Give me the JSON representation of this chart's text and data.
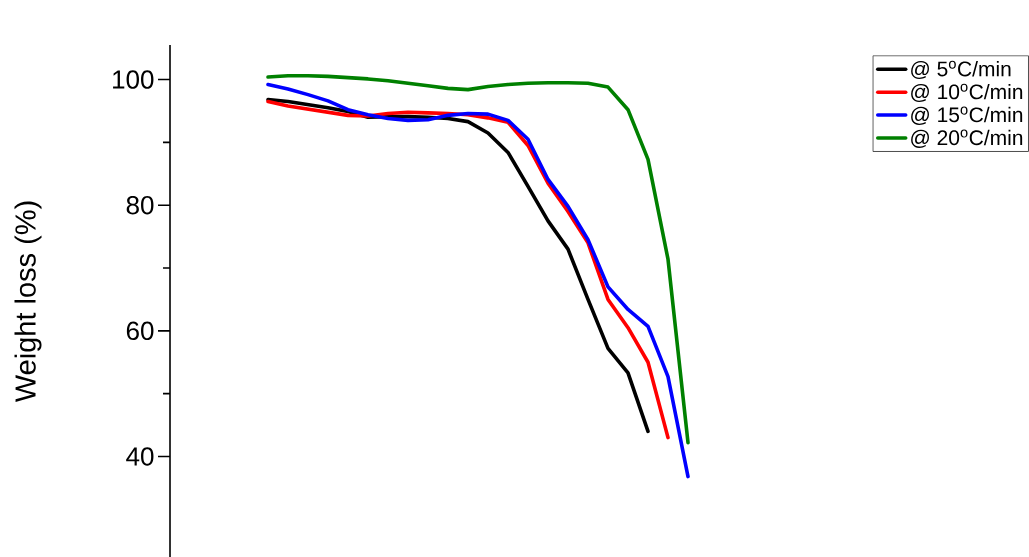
{
  "chart_data": {
    "type": "line",
    "ylabel": "Weight loss (%)",
    "categories": [
      null,
      null,
      null,
      null,
      null,
      null,
      null,
      null,
      null,
      null,
      null,
      null,
      null,
      null,
      null,
      null,
      null,
      null,
      null,
      null,
      null,
      null,
      null
    ],
    "series": [
      {
        "name": "@ 5$^{o}$C/min",
        "color": "#000000",
        "values": [
          96.8,
          96.5,
          96.0,
          95.5,
          94.9,
          94.0,
          94.1,
          94.1,
          94.0,
          93.8,
          93.3,
          91.5,
          88.4,
          83.0,
          77.5,
          73.0,
          65.0,
          57.2,
          53.3,
          44.0,
          null,
          null,
          null
        ]
      },
      {
        "name": "@ 10$^{o}$C/min",
        "color": "#ff0000",
        "values": [
          96.5,
          95.8,
          95.3,
          94.8,
          94.3,
          94.2,
          94.6,
          94.8,
          94.7,
          94.6,
          94.4,
          93.9,
          93.2,
          89.5,
          83.5,
          79.0,
          74.0,
          65.0,
          60.5,
          55.0,
          43.0,
          null,
          null
        ]
      },
      {
        "name": "@ 15$^{o}$C/min",
        "color": "#0000ff",
        "values": [
          99.2,
          98.5,
          97.6,
          96.6,
          95.2,
          94.4,
          93.8,
          93.5,
          93.6,
          94.3,
          94.6,
          94.5,
          93.5,
          90.5,
          84.1,
          79.8,
          74.5,
          67.0,
          63.4,
          60.7,
          52.7,
          36.8,
          null
        ]
      },
      {
        "name": "@ 20$^{o}$C/min",
        "color": "#008000",
        "values": [
          100.4,
          100.6,
          100.6,
          100.5,
          100.3,
          100.1,
          99.8,
          99.4,
          99.0,
          98.6,
          98.4,
          98.9,
          99.2,
          99.4,
          99.5,
          99.5,
          99.4,
          98.8,
          95.2,
          87.3,
          71.4,
          42.2,
          null
        ]
      }
    ],
    "ylim": [
      24,
      105.5
    ],
    "yticks": [
      40,
      60,
      80,
      100
    ],
    "tick_labels": "y",
    "grid": false,
    "legend": "top right",
    "line_style": "solid"
  }
}
